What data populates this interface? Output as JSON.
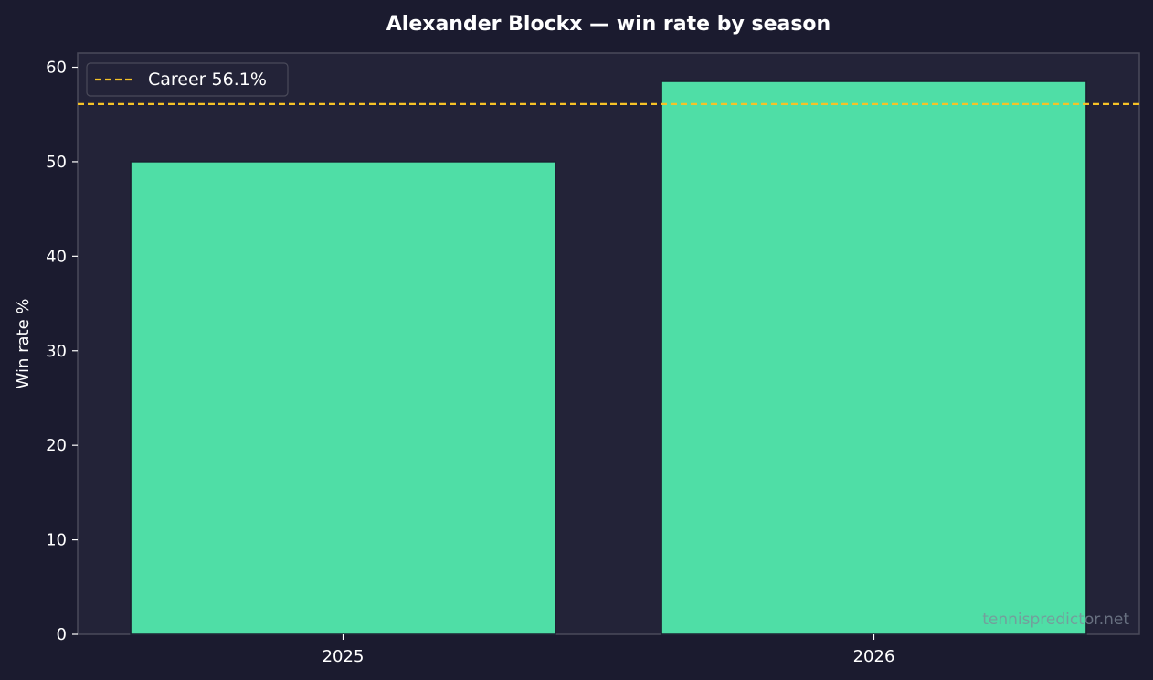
{
  "chart_data": {
    "type": "bar",
    "title": "Alexander Blockx — win rate by season",
    "xlabel": "",
    "ylabel": "Win rate %",
    "categories": [
      "2025",
      "2026"
    ],
    "values": [
      50.0,
      58.5
    ],
    "ylim": [
      0,
      61.5
    ],
    "yticks": [
      0,
      10,
      20,
      30,
      40,
      50,
      60
    ],
    "grid": false,
    "bar_color": "#4fdea6",
    "reference_line": {
      "value": 56.1,
      "label": "Career 56.1%",
      "color": "#f5c227",
      "style": "dashed"
    },
    "legend": {
      "placement": "top-left",
      "entries": [
        "Career 56.1%"
      ]
    }
  },
  "watermark": "tennispredictor.net",
  "colors": {
    "background": "#1b1b2f",
    "plot_background": "#232338",
    "frame": "#4a4a5a",
    "text": "#ffffff"
  }
}
